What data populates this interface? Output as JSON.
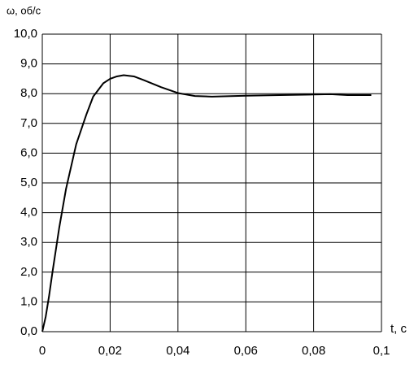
{
  "chart_data": {
    "type": "line",
    "y_label": "ω, об/с",
    "x_label": "t, c",
    "x": [
      0,
      0.001,
      0.002,
      0.003,
      0.005,
      0.007,
      0.01,
      0.013,
      0.015,
      0.018,
      0.02,
      0.022,
      0.024,
      0.027,
      0.03,
      0.035,
      0.04,
      0.045,
      0.05,
      0.06,
      0.07,
      0.08,
      0.085,
      0.09,
      0.097
    ],
    "series": [
      {
        "color": "#000000",
        "values": [
          0,
          0.5,
          1.2,
          2.0,
          3.5,
          4.8,
          6.3,
          7.3,
          7.9,
          8.35,
          8.5,
          8.58,
          8.62,
          8.58,
          8.45,
          8.22,
          8.02,
          7.92,
          7.9,
          7.93,
          7.95,
          7.97,
          7.98,
          7.95,
          7.95
        ]
      }
    ],
    "xlim": [
      0,
      0.1
    ],
    "xticks": [
      0,
      {
        "value": 0.02,
        "label": "0,02"
      },
      {
        "value": 0.04,
        "label": "0,04"
      },
      {
        "value": 0.06,
        "label": "0,06"
      },
      {
        "value": 0.08,
        "label": "0,08"
      },
      {
        "value": 0.1,
        "label": "0,1"
      }
    ],
    "ylim": [
      0,
      10
    ],
    "yticks": [
      {
        "value": 0,
        "label": "0,0"
      },
      {
        "value": 1,
        "label": "1,0"
      },
      {
        "value": 2,
        "label": "2,0"
      },
      {
        "value": 3,
        "label": "3,0"
      },
      {
        "value": 4,
        "label": "4,0"
      },
      {
        "value": 5,
        "label": "5,0"
      },
      {
        "value": 6,
        "label": "6,0"
      },
      {
        "value": 7,
        "label": "7,0"
      },
      {
        "value": 8,
        "label": "8,0"
      },
      {
        "value": 9,
        "label": "9,0"
      },
      {
        "value": 10,
        "label": "10,0"
      }
    ],
    "grid": true
  }
}
